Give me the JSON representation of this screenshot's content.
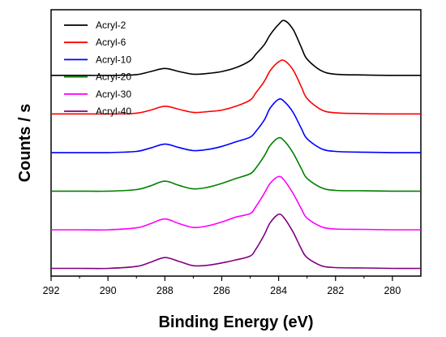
{
  "chart_data": {
    "type": "line",
    "title": "",
    "xlabel": "Binding Energy (eV)",
    "ylabel": "Counts / s",
    "xlim": [
      292,
      279
    ],
    "x_reversed": true,
    "x_ticks": [
      292,
      290,
      288,
      286,
      284,
      282,
      280
    ],
    "y_ticks_shown": false,
    "grid": false,
    "legend_position": "top-left",
    "y_units": "arbitrary (normalized counts, stacked with vertical offsets)",
    "x": [
      292,
      291,
      290,
      289,
      288.5,
      288,
      287.5,
      287,
      286.5,
      286,
      285.5,
      285,
      284.8,
      284.5,
      284.3,
      284,
      283.8,
      283.5,
      283.2,
      283,
      282.5,
      282,
      281,
      280,
      279
    ],
    "series": [
      {
        "name": "Acryl-2",
        "color": "#000000",
        "offset": 5.0,
        "values": [
          0,
          0,
          0,
          0.02,
          0.1,
          0.18,
          0.1,
          0.03,
          0.05,
          0.1,
          0.2,
          0.38,
          0.55,
          0.8,
          1.05,
          1.32,
          1.42,
          1.2,
          0.72,
          0.42,
          0.12,
          0.03,
          0.01,
          0,
          0
        ]
      },
      {
        "name": "Acryl-6",
        "color": "#ff0000",
        "offset": 4.0,
        "values": [
          0,
          0,
          0,
          0.02,
          0.1,
          0.2,
          0.12,
          0.04,
          0.06,
          0.1,
          0.2,
          0.36,
          0.55,
          0.85,
          1.12,
          1.35,
          1.38,
          1.15,
          0.7,
          0.4,
          0.11,
          0.03,
          0.01,
          0,
          0
        ]
      },
      {
        "name": "Acryl-10",
        "color": "#0000ff",
        "offset": 3.0,
        "values": [
          0,
          0,
          0,
          0.03,
          0.12,
          0.22,
          0.13,
          0.05,
          0.08,
          0.16,
          0.28,
          0.4,
          0.55,
          0.85,
          1.15,
          1.38,
          1.32,
          1.05,
          0.62,
          0.36,
          0.1,
          0.03,
          0.01,
          0,
          0
        ]
      },
      {
        "name": "Acryl-20",
        "color": "#008000",
        "offset": 2.0,
        "values": [
          0,
          0,
          0,
          0.04,
          0.14,
          0.26,
          0.15,
          0.06,
          0.1,
          0.2,
          0.33,
          0.45,
          0.6,
          0.92,
          1.18,
          1.38,
          1.3,
          1.0,
          0.58,
          0.33,
          0.09,
          0.02,
          0.01,
          0,
          0
        ]
      },
      {
        "name": "Acryl-30",
        "color": "#ff00ff",
        "offset": 1.0,
        "values": [
          0,
          0,
          0,
          0.05,
          0.16,
          0.28,
          0.16,
          0.06,
          0.1,
          0.2,
          0.33,
          0.42,
          0.6,
          0.95,
          1.2,
          1.38,
          1.28,
          0.95,
          0.54,
          0.3,
          0.08,
          0.02,
          0.01,
          0,
          0
        ]
      },
      {
        "name": "Acryl-40",
        "color": "#800080",
        "offset": 0.0,
        "values": [
          0,
          0,
          0,
          0.05,
          0.16,
          0.28,
          0.18,
          0.07,
          0.08,
          0.14,
          0.22,
          0.32,
          0.5,
          0.88,
          1.18,
          1.4,
          1.3,
          0.95,
          0.5,
          0.28,
          0.07,
          0.02,
          0.01,
          0,
          0
        ]
      }
    ],
    "ylim": [
      -0.2,
      6.7
    ]
  }
}
